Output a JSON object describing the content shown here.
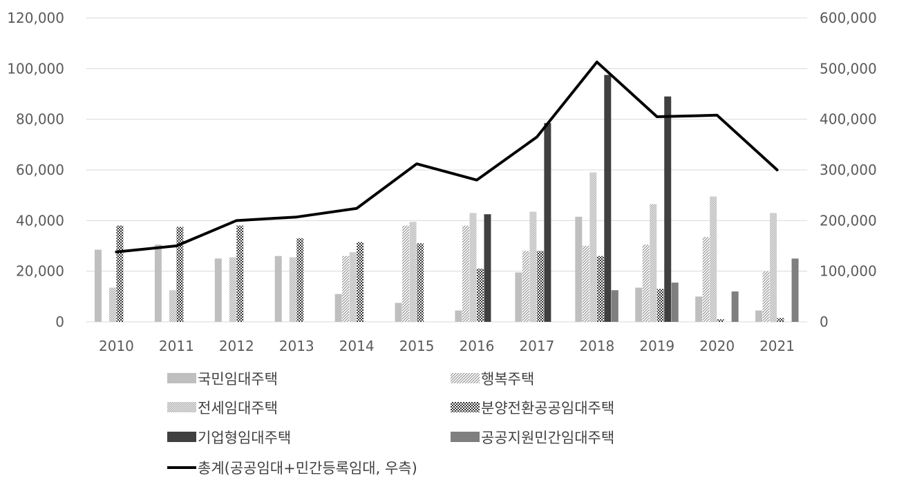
{
  "chart_data": {
    "type": "bar",
    "categories": [
      "2010",
      "2011",
      "2012",
      "2013",
      "2014",
      "2015",
      "2016",
      "2017",
      "2018",
      "2019",
      "2020",
      "2021"
    ],
    "y_left": {
      "min": 0,
      "max": 120000,
      "step": 20000,
      "tick_labels": [
        "0",
        "20,000",
        "40,000",
        "60,000",
        "80,000",
        "100,000",
        "120,000"
      ]
    },
    "y_right": {
      "min": 0,
      "max": 600000,
      "step": 100000,
      "tick_labels": [
        "0",
        "100,000",
        "200,000",
        "300,000",
        "400,000",
        "500,000",
        "600,000"
      ]
    },
    "grid": true,
    "legend_position": "bottom",
    "series": [
      {
        "name": "국민임대주택",
        "axis": "left",
        "color": "#bfbfbf",
        "pattern": "solid",
        "values": [
          28500,
          30500,
          25000,
          26000,
          11000,
          7500,
          4500,
          19500,
          41500,
          13500,
          10000,
          4500
        ]
      },
      {
        "name": "행복주택",
        "axis": "left",
        "color": "#9a9a9a",
        "pattern": "diagonal",
        "values": [
          0,
          0,
          0,
          0,
          26000,
          38000,
          38000,
          28000,
          30000,
          30500,
          33500,
          20000
        ]
      },
      {
        "name": "전세임대주택",
        "axis": "left",
        "color": "#c8c8c8",
        "pattern": "dots",
        "values": [
          13500,
          12500,
          25500,
          25500,
          27500,
          39500,
          43000,
          43500,
          59000,
          46500,
          49500,
          43000
        ]
      },
      {
        "name": "분양전환공공임대주택",
        "axis": "left",
        "color": "#404040",
        "pattern": "checker",
        "values": [
          38000,
          37500,
          38000,
          33000,
          31500,
          31000,
          21000,
          28000,
          26000,
          13000,
          1000,
          1500
        ]
      },
      {
        "name": "기업형임대주택",
        "axis": "left",
        "color": "#404040",
        "pattern": "solid",
        "values": [
          0,
          0,
          0,
          0,
          0,
          0,
          42500,
          78500,
          97500,
          89000,
          0,
          0
        ]
      },
      {
        "name": "공공지원민간임대주택",
        "axis": "left",
        "color": "#7f7f7f",
        "pattern": "solid",
        "values": [
          0,
          0,
          0,
          0,
          0,
          0,
          0,
          0,
          12500,
          15500,
          12000,
          25000
        ]
      },
      {
        "name": "총계(공공임대+민간등록임대, 우측)",
        "axis": "right",
        "type": "line",
        "color": "#000000",
        "values": [
          138000,
          150000,
          200000,
          207000,
          224000,
          312000,
          280000,
          365000,
          513000,
          405000,
          408000,
          300000
        ]
      }
    ]
  }
}
